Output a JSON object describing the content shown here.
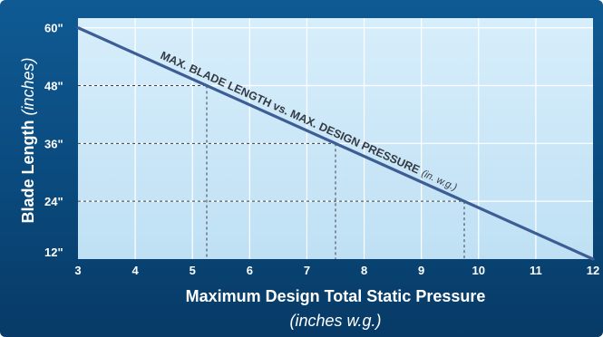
{
  "chart_data": {
    "type": "line",
    "x": [
      3,
      12
    ],
    "series": [
      {
        "values": [
          60,
          12
        ]
      }
    ],
    "xticks": [
      3,
      4,
      5,
      6,
      7,
      8,
      9,
      10,
      11,
      12
    ],
    "xtick_labels": [
      "3",
      "4",
      "5",
      "6",
      "7",
      "8",
      "9",
      "10",
      "11",
      "12"
    ],
    "yticks": [
      12,
      24,
      36,
      48,
      60
    ],
    "ytick_labels": [
      "12\"",
      "24\"",
      "36\"",
      "48\"",
      "60\""
    ],
    "xlim": [
      3,
      12
    ],
    "ylim": [
      12,
      62
    ],
    "xlabel": "Maximum Design Total Static Pressure",
    "xlabel_sub": "(inches w.g.)",
    "ylabel": "Blade Length",
    "ylabel_sub": "(inches)",
    "annotation": "MAX. BLADE LENGTH vs. MAX. DESIGN PRESSURE",
    "annotation_sub": "(in. w.g.)",
    "reference_points": [
      {
        "x": 5.25,
        "y": 48
      },
      {
        "x": 7.5,
        "y": 36
      },
      {
        "x": 9.75,
        "y": 24
      }
    ],
    "grid": true,
    "colors": {
      "background": "#0b4f86",
      "plot_area": "#cfe9f8",
      "line": "#3d5d95",
      "text": "#ffffff",
      "annotation": "#333a44"
    }
  }
}
